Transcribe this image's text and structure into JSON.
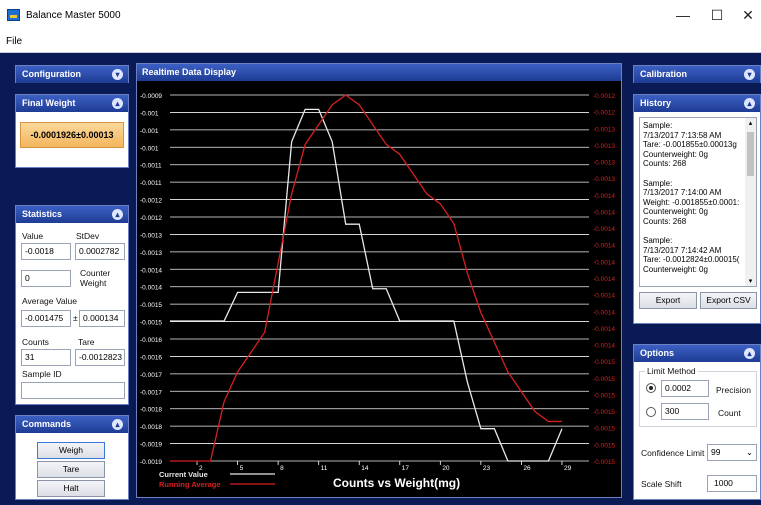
{
  "window": {
    "title": "Balance Master 5000",
    "minimize": "—",
    "maximize": "☐",
    "close": "✕"
  },
  "menu": {
    "file": "File"
  },
  "configuration": {
    "header": "Configuration"
  },
  "final_weight": {
    "header": "Final Weight",
    "value": "-0.0001926±0.00013"
  },
  "statistics": {
    "header": "Statistics",
    "value_label": "Value",
    "stdev_label": "StDev",
    "value": "-0.0018",
    "stdev": "0.0002782",
    "counter_weight_value": "0",
    "counter_weight_label": "Counter\nWeight",
    "average_label": "Average Value",
    "average_value": "-0.001475",
    "pm": "±",
    "average_dev": "0.000134",
    "counts_label": "Counts",
    "tare_label": "Tare",
    "counts": "31",
    "tare": "-0.0012823",
    "sample_id_label": "Sample ID",
    "sample_id": ""
  },
  "commands": {
    "header": "Commands",
    "weigh": "Weigh",
    "tare": "Tare",
    "halt": "Halt"
  },
  "chart_panel": {
    "header": "Realtime Data Display"
  },
  "calibration": {
    "header": "Calibration"
  },
  "history": {
    "header": "History",
    "entries": [
      [
        "Sample:",
        "7/13/2017 7:13:58 AM",
        "Tare: -0.001855±0.00013g",
        "Counterweight: 0g",
        "Counts: 268"
      ],
      [
        "Sample:",
        "7/13/2017 7:14:00 AM",
        "Weight: -0.001855±0.0001:",
        "Counterweight: 0g",
        "Counts: 268"
      ],
      [
        "Sample:",
        "7/13/2017 7:14:42 AM",
        "Tare: -0.0012824±0.00015(",
        "Counterweight: 0g"
      ]
    ],
    "export": "Export",
    "export_csv": "Export CSV"
  },
  "options": {
    "header": "Options",
    "limit_method": "Limit Method",
    "precision_value": "0.0002",
    "precision_label": "Precision",
    "count_value": "300",
    "count_label": "Count",
    "confidence_label": "Confidence Limit",
    "confidence_value": "99",
    "scale_shift_label": "Scale Shift",
    "scale_shift_value": "1000"
  },
  "colors": {
    "current": "#e8e8e8",
    "running": "#d62020",
    "accent": "#1e3c94"
  },
  "chart_data": {
    "type": "line",
    "title": "",
    "xlabel": "Counts vs Weight(mg)",
    "ylabel": "",
    "x_ticks": [
      2,
      5,
      8,
      11,
      14,
      17,
      20,
      23,
      26,
      29
    ],
    "xlim": [
      0,
      31
    ],
    "left_ticks": [
      "-0.0009",
      "-0.001",
      "-0.001",
      "-0.001",
      "-0.0011",
      "-0.0011",
      "-0.0012",
      "-0.0012",
      "-0.0013",
      "-0.0013",
      "-0.0014",
      "-0.0014",
      "-0.0015",
      "-0.0015",
      "-0.0016",
      "-0.0016",
      "-0.0017",
      "-0.0017",
      "-0.0018",
      "-0.0018",
      "-0.0019",
      "-0.0019"
    ],
    "right_ticks": [
      "-0.0012",
      "-0.0012",
      "-0.0013",
      "-0.0013",
      "-0.0013",
      "-0.0013",
      "-0.0014",
      "-0.0014",
      "-0.0014",
      "-0.0014",
      "-0.0014",
      "-0.0014",
      "-0.0014",
      "-0.0014",
      "-0.0014",
      "-0.0014",
      "-0.0015",
      "-0.0015",
      "-0.0015",
      "-0.0015",
      "-0.0015",
      "-0.0015",
      "-0.0015"
    ],
    "left_ylim": [
      -0.0019,
      -0.00088
    ],
    "right_ylim": [
      -0.00155,
      -0.00118
    ],
    "series": [
      {
        "name": "Current Value",
        "axis": "left",
        "x": [
          0,
          4,
          5,
          8,
          9,
          10,
          11,
          12,
          13,
          14,
          15,
          16,
          17,
          21,
          22,
          23,
          24,
          25,
          26,
          28,
          29
        ],
        "y": [
          -0.00151,
          -0.00151,
          -0.00143,
          -0.00143,
          -0.00101,
          -0.00092,
          -0.00092,
          -0.00101,
          -0.00124,
          -0.00124,
          -0.00142,
          -0.00142,
          -0.00151,
          -0.00151,
          -0.00168,
          -0.00181,
          -0.00181,
          -0.0019,
          -0.0019,
          -0.0019,
          -0.00181
        ]
      },
      {
        "name": "Running Average",
        "axis": "right",
        "x": [
          0,
          3,
          4,
          5,
          7,
          8,
          9,
          10,
          11,
          12,
          13,
          14,
          15,
          16,
          17,
          18,
          19,
          20,
          21,
          22,
          23,
          24,
          25,
          26,
          27,
          28,
          29
        ],
        "y": [
          -0.00155,
          -0.00155,
          -0.00149,
          -0.00146,
          -0.00142,
          -0.00135,
          -0.00128,
          -0.00123,
          -0.00121,
          -0.00119,
          -0.00118,
          -0.00119,
          -0.00121,
          -0.00123,
          -0.00124,
          -0.00126,
          -0.00128,
          -0.00129,
          -0.00131,
          -0.00136,
          -0.0014,
          -0.00143,
          -0.00146,
          -0.00148,
          -0.0015,
          -0.00151,
          -0.00151
        ]
      }
    ],
    "grid": true,
    "legend": "bottom-left"
  }
}
